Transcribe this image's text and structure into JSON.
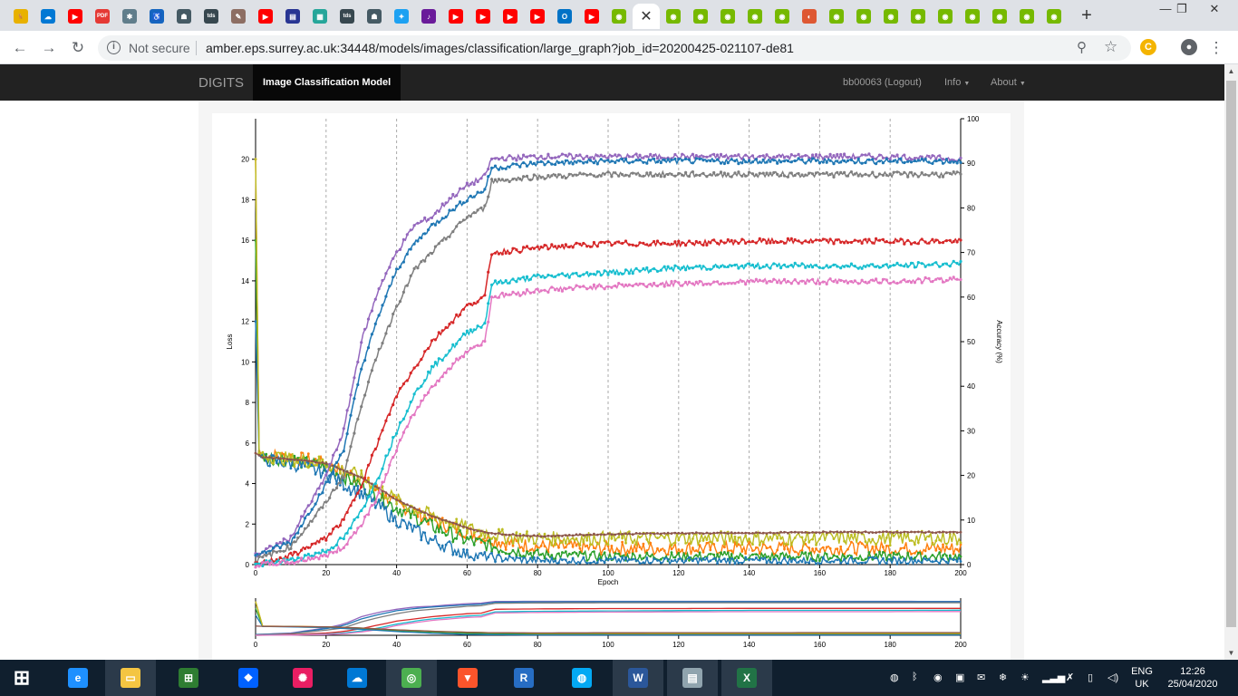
{
  "browser": {
    "tabs": [
      {
        "icon": "deer-icon",
        "color": "#e8b100",
        "glyph": "🦌"
      },
      {
        "icon": "cloud-mail-icon",
        "color": "#0078d4",
        "glyph": "☁"
      },
      {
        "icon": "youtube-icon",
        "color": "#ff0000",
        "glyph": "▶"
      },
      {
        "icon": "pdf-icon",
        "color": "#e53935",
        "glyph": "PDF"
      },
      {
        "icon": "puzzle-icon",
        "color": "#607d8b",
        "glyph": "✱"
      },
      {
        "icon": "accessibility-icon",
        "color": "#1565c0",
        "glyph": "♿"
      },
      {
        "icon": "robot-icon",
        "color": "#455a64",
        "glyph": "☗"
      },
      {
        "icon": "tds-icon",
        "color": "#37474f",
        "glyph": "tds"
      },
      {
        "icon": "feather-icon",
        "color": "#8d6e63",
        "glyph": "✎"
      },
      {
        "icon": "youtube-icon",
        "color": "#ff0000",
        "glyph": "▶"
      },
      {
        "icon": "book-icon",
        "color": "#283593",
        "glyph": "▤"
      },
      {
        "icon": "notebook-icon",
        "color": "#26a69a",
        "glyph": "▦"
      },
      {
        "icon": "tds-icon",
        "color": "#37474f",
        "glyph": "tds"
      },
      {
        "icon": "robot-icon",
        "color": "#455a64",
        "glyph": "☗"
      },
      {
        "icon": "twitter-icon",
        "color": "#1da1f2",
        "glyph": "✦"
      },
      {
        "icon": "tiktok-icon",
        "color": "#6a1b9a",
        "glyph": "♪"
      },
      {
        "icon": "youtube-icon",
        "color": "#ff0000",
        "glyph": "▶"
      },
      {
        "icon": "youtube-icon",
        "color": "#ff0000",
        "glyph": "▶"
      },
      {
        "icon": "youtube-icon",
        "color": "#ff0000",
        "glyph": "▶"
      },
      {
        "icon": "youtube-icon",
        "color": "#ff0000",
        "glyph": "▶"
      },
      {
        "icon": "outlook-icon",
        "color": "#0072c6",
        "glyph": "O"
      },
      {
        "icon": "youtube-icon",
        "color": "#ff0000",
        "glyph": "▶"
      },
      {
        "icon": "nvidia-icon",
        "color": "#76b900",
        "glyph": "◉"
      },
      {
        "active": true,
        "icon": "close-tab-icon",
        "glyph": "✕"
      },
      {
        "icon": "nvidia-icon",
        "color": "#76b900",
        "glyph": "◉"
      },
      {
        "icon": "nvidia-icon",
        "color": "#76b900",
        "glyph": "◉"
      },
      {
        "icon": "nvidia-icon",
        "color": "#76b900",
        "glyph": "◉"
      },
      {
        "icon": "nvidia-icon",
        "color": "#76b900",
        "glyph": "◉"
      },
      {
        "icon": "nvidia-icon",
        "color": "#76b900",
        "glyph": "◉"
      },
      {
        "icon": "duckduckgo-icon",
        "color": "#de5833",
        "glyph": "◐"
      },
      {
        "icon": "nvidia-icon",
        "color": "#76b900",
        "glyph": "◉"
      },
      {
        "icon": "nvidia-icon",
        "color": "#76b900",
        "glyph": "◉"
      },
      {
        "icon": "nvidia-icon",
        "color": "#76b900",
        "glyph": "◉"
      },
      {
        "icon": "nvidia-icon",
        "color": "#76b900",
        "glyph": "◉"
      },
      {
        "icon": "nvidia-icon",
        "color": "#76b900",
        "glyph": "◉"
      },
      {
        "icon": "nvidia-icon",
        "color": "#76b900",
        "glyph": "◉"
      },
      {
        "icon": "nvidia-icon",
        "color": "#76b900",
        "glyph": "◉"
      },
      {
        "icon": "nvidia-icon",
        "color": "#76b900",
        "glyph": "◉"
      },
      {
        "icon": "nvidia-icon",
        "color": "#76b900",
        "glyph": "◉"
      }
    ],
    "new_tab": "+",
    "window_controls": {
      "minimize": "—",
      "restore": "❐",
      "close": "✕"
    },
    "nav": {
      "back": "←",
      "forward": "→",
      "reload": "↻"
    },
    "security_label": "Not secure",
    "url": "amber.eps.surrey.ac.uk:34448/models/images/classification/large_graph?job_id=20200425-021107-de81",
    "zoom_glyph": "⚲",
    "star_glyph": "☆",
    "menu_glyph": "⋮"
  },
  "digits_nav": {
    "brand": "DIGITS",
    "active": "Image Classification Model",
    "user": "bb00063 (Logout)",
    "info": "Info",
    "about": "About"
  },
  "chart_data": [
    {
      "type": "line",
      "title": "",
      "xlabel": "Epoch",
      "ylabel_left": "Loss",
      "ylabel_right": "Accuracy (%)",
      "xlim": [
        0,
        200
      ],
      "ylim_left": [
        0,
        22
      ],
      "ylim_right": [
        0,
        100
      ],
      "x_ticks": [
        0,
        20,
        40,
        60,
        80,
        100,
        120,
        140,
        160,
        180,
        200
      ],
      "y_left_ticks": [
        0,
        2,
        4,
        6,
        8,
        10,
        12,
        14,
        16,
        18,
        20
      ],
      "y_right_ticks": [
        0,
        10,
        20,
        30,
        40,
        50,
        60,
        70,
        80,
        90,
        100
      ],
      "grid": "vertical dashed",
      "series": [
        {
          "axis": "right",
          "color": "#9467bd",
          "x": [
            0,
            10,
            20,
            25,
            30,
            35,
            40,
            45,
            50,
            55,
            60,
            65,
            67,
            80,
            100,
            120,
            140,
            160,
            180,
            200
          ],
          "values": [
            2,
            6,
            20,
            30,
            50,
            62,
            70,
            76,
            78,
            82,
            85,
            87,
            91,
            91.5,
            91.5,
            91.5,
            91.5,
            91.5,
            91.5,
            91
          ]
        },
        {
          "axis": "right",
          "color": "#1f77b4",
          "x": [
            0,
            10,
            20,
            25,
            30,
            35,
            40,
            45,
            50,
            55,
            60,
            65,
            67,
            80,
            100,
            120,
            140,
            160,
            180,
            200
          ],
          "values": [
            2,
            5,
            18,
            26,
            44,
            56,
            66,
            72,
            76,
            79,
            82,
            84,
            89,
            90,
            90.5,
            90.5,
            90.5,
            90.5,
            90.5,
            90.5
          ]
        },
        {
          "axis": "right",
          "color": "#7f7f7f",
          "x": [
            0,
            10,
            20,
            25,
            30,
            35,
            40,
            45,
            50,
            55,
            60,
            65,
            67,
            80,
            100,
            120,
            140,
            160,
            180,
            200
          ],
          "values": [
            1,
            4,
            14,
            20,
            36,
            48,
            58,
            66,
            70,
            74,
            78,
            80,
            86,
            87,
            87.5,
            87.5,
            87.5,
            87.5,
            87.5,
            87.5
          ]
        },
        {
          "axis": "right",
          "color": "#d62728",
          "x": [
            0,
            10,
            20,
            25,
            30,
            35,
            40,
            45,
            50,
            55,
            60,
            65,
            67,
            80,
            100,
            120,
            140,
            160,
            180,
            200
          ],
          "values": [
            0,
            2,
            6,
            10,
            18,
            28,
            38,
            44,
            50,
            54,
            58,
            60,
            70,
            71,
            72,
            72,
            72.5,
            72.5,
            72.5,
            72.5
          ]
        },
        {
          "axis": "right",
          "color": "#17becf",
          "x": [
            0,
            10,
            20,
            25,
            30,
            35,
            40,
            45,
            50,
            55,
            60,
            65,
            67,
            80,
            100,
            120,
            140,
            160,
            180,
            200
          ],
          "values": [
            0,
            1,
            3,
            6,
            12,
            20,
            30,
            38,
            44,
            48,
            52,
            54,
            63,
            64.5,
            65.5,
            66.5,
            67,
            67,
            67,
            67.5
          ]
        },
        {
          "axis": "right",
          "color": "#e377c2",
          "x": [
            0,
            10,
            20,
            25,
            30,
            35,
            40,
            45,
            50,
            55,
            60,
            65,
            67,
            80,
            100,
            120,
            140,
            160,
            180,
            200
          ],
          "values": [
            0,
            0.5,
            2,
            4,
            9,
            16,
            26,
            34,
            40,
            44,
            48,
            50,
            60,
            61.5,
            62.5,
            63,
            63.5,
            63.5,
            63.5,
            64
          ]
        },
        {
          "axis": "left",
          "color": "#ff7f0e",
          "x": [
            0,
            1,
            2,
            10,
            20,
            30,
            40,
            50,
            60,
            70,
            80,
            100,
            120,
            140,
            160,
            180,
            200
          ],
          "values": [
            20,
            5.6,
            5.4,
            5.3,
            5.0,
            4.2,
            3.0,
            2.2,
            1.6,
            1.1,
            0.9,
            0.8,
            0.8,
            0.8,
            0.8,
            0.8,
            0.8
          ]
        },
        {
          "axis": "left",
          "color": "#2ca02c",
          "x": [
            0,
            1,
            2,
            10,
            20,
            30,
            40,
            50,
            60,
            70,
            80,
            100,
            120,
            140,
            160,
            180,
            200
          ],
          "values": [
            16,
            5.5,
            5.3,
            5.2,
            4.8,
            3.9,
            2.8,
            1.9,
            1.2,
            0.8,
            0.5,
            0.4,
            0.4,
            0.4,
            0.4,
            0.4,
            0.4
          ]
        },
        {
          "axis": "left",
          "color": "#1f77b4",
          "x": [
            0,
            1,
            2,
            10,
            20,
            30,
            40,
            50,
            60,
            70,
            80,
            100,
            120,
            140,
            160,
            180,
            200
          ],
          "values": [
            12,
            5.4,
            5.2,
            5.0,
            4.5,
            3.5,
            2.2,
            1.2,
            0.5,
            0.3,
            0.2,
            0.2,
            0.2,
            0.2,
            0.2,
            0.2,
            0.2
          ]
        },
        {
          "axis": "left",
          "color": "#bcbd22",
          "x": [
            0,
            1,
            2,
            10,
            20,
            30,
            40,
            50,
            60,
            70,
            80,
            100,
            120,
            140,
            160,
            180,
            200
          ],
          "values": [
            20,
            5.5,
            5.4,
            5.2,
            5.0,
            4.3,
            3.2,
            2.4,
            1.8,
            1.4,
            1.3,
            1.3,
            1.3,
            1.3,
            1.3,
            1.3,
            1.3
          ]
        },
        {
          "axis": "left",
          "color": "#8c564b",
          "x": [
            0,
            1,
            2,
            10,
            20,
            30,
            40,
            50,
            60,
            65,
            70,
            80,
            90,
            100,
            120,
            140,
            160,
            180,
            200
          ],
          "values": [
            5.5,
            5.4,
            5.3,
            5.2,
            5.0,
            4.3,
            3.2,
            2.4,
            1.8,
            1.6,
            1.5,
            1.4,
            1.45,
            1.5,
            1.55,
            1.55,
            1.6,
            1.6,
            1.6
          ]
        }
      ]
    },
    {
      "type": "line",
      "title": "",
      "role": "overview",
      "xlim": [
        0,
        200
      ],
      "x_ticks": [
        0,
        20,
        40,
        60,
        80,
        100,
        120,
        140,
        160,
        180,
        200
      ]
    }
  ],
  "taskbar": {
    "apps": [
      {
        "icon": "windows-start-icon",
        "color": "#ffffff",
        "glyph": "⊞"
      },
      {
        "icon": "internet-explorer-icon",
        "color": "#1e90ff",
        "glyph": "e"
      },
      {
        "icon": "file-explorer-icon",
        "color": "#f4c542",
        "glyph": "▭"
      },
      {
        "icon": "store-icon",
        "color": "#2e7d32",
        "glyph": "⊞"
      },
      {
        "icon": "dropbox-icon",
        "color": "#0061ff",
        "glyph": "❖"
      },
      {
        "icon": "paint-icon",
        "color": "#e91e63",
        "glyph": "✺"
      },
      {
        "icon": "onedrive-icon",
        "color": "#0078d4",
        "glyph": "☁"
      },
      {
        "icon": "chrome-icon",
        "color": "#4caf50",
        "glyph": "◎"
      },
      {
        "icon": "brave-icon",
        "color": "#fb542b",
        "glyph": "▼"
      },
      {
        "icon": "r-icon",
        "color": "#276dc3",
        "glyph": "R"
      },
      {
        "icon": "globe-icon",
        "color": "#03a9f4",
        "glyph": "◍"
      },
      {
        "icon": "word-icon",
        "color": "#2b579a",
        "glyph": "W"
      },
      {
        "icon": "notepad-icon",
        "color": "#90a4ae",
        "glyph": "▤"
      },
      {
        "icon": "excel-icon",
        "color": "#217346",
        "glyph": "X"
      }
    ],
    "lang_top": "ENG",
    "lang_bottom": "UK",
    "time": "12:26",
    "date": "25/04/2020"
  }
}
